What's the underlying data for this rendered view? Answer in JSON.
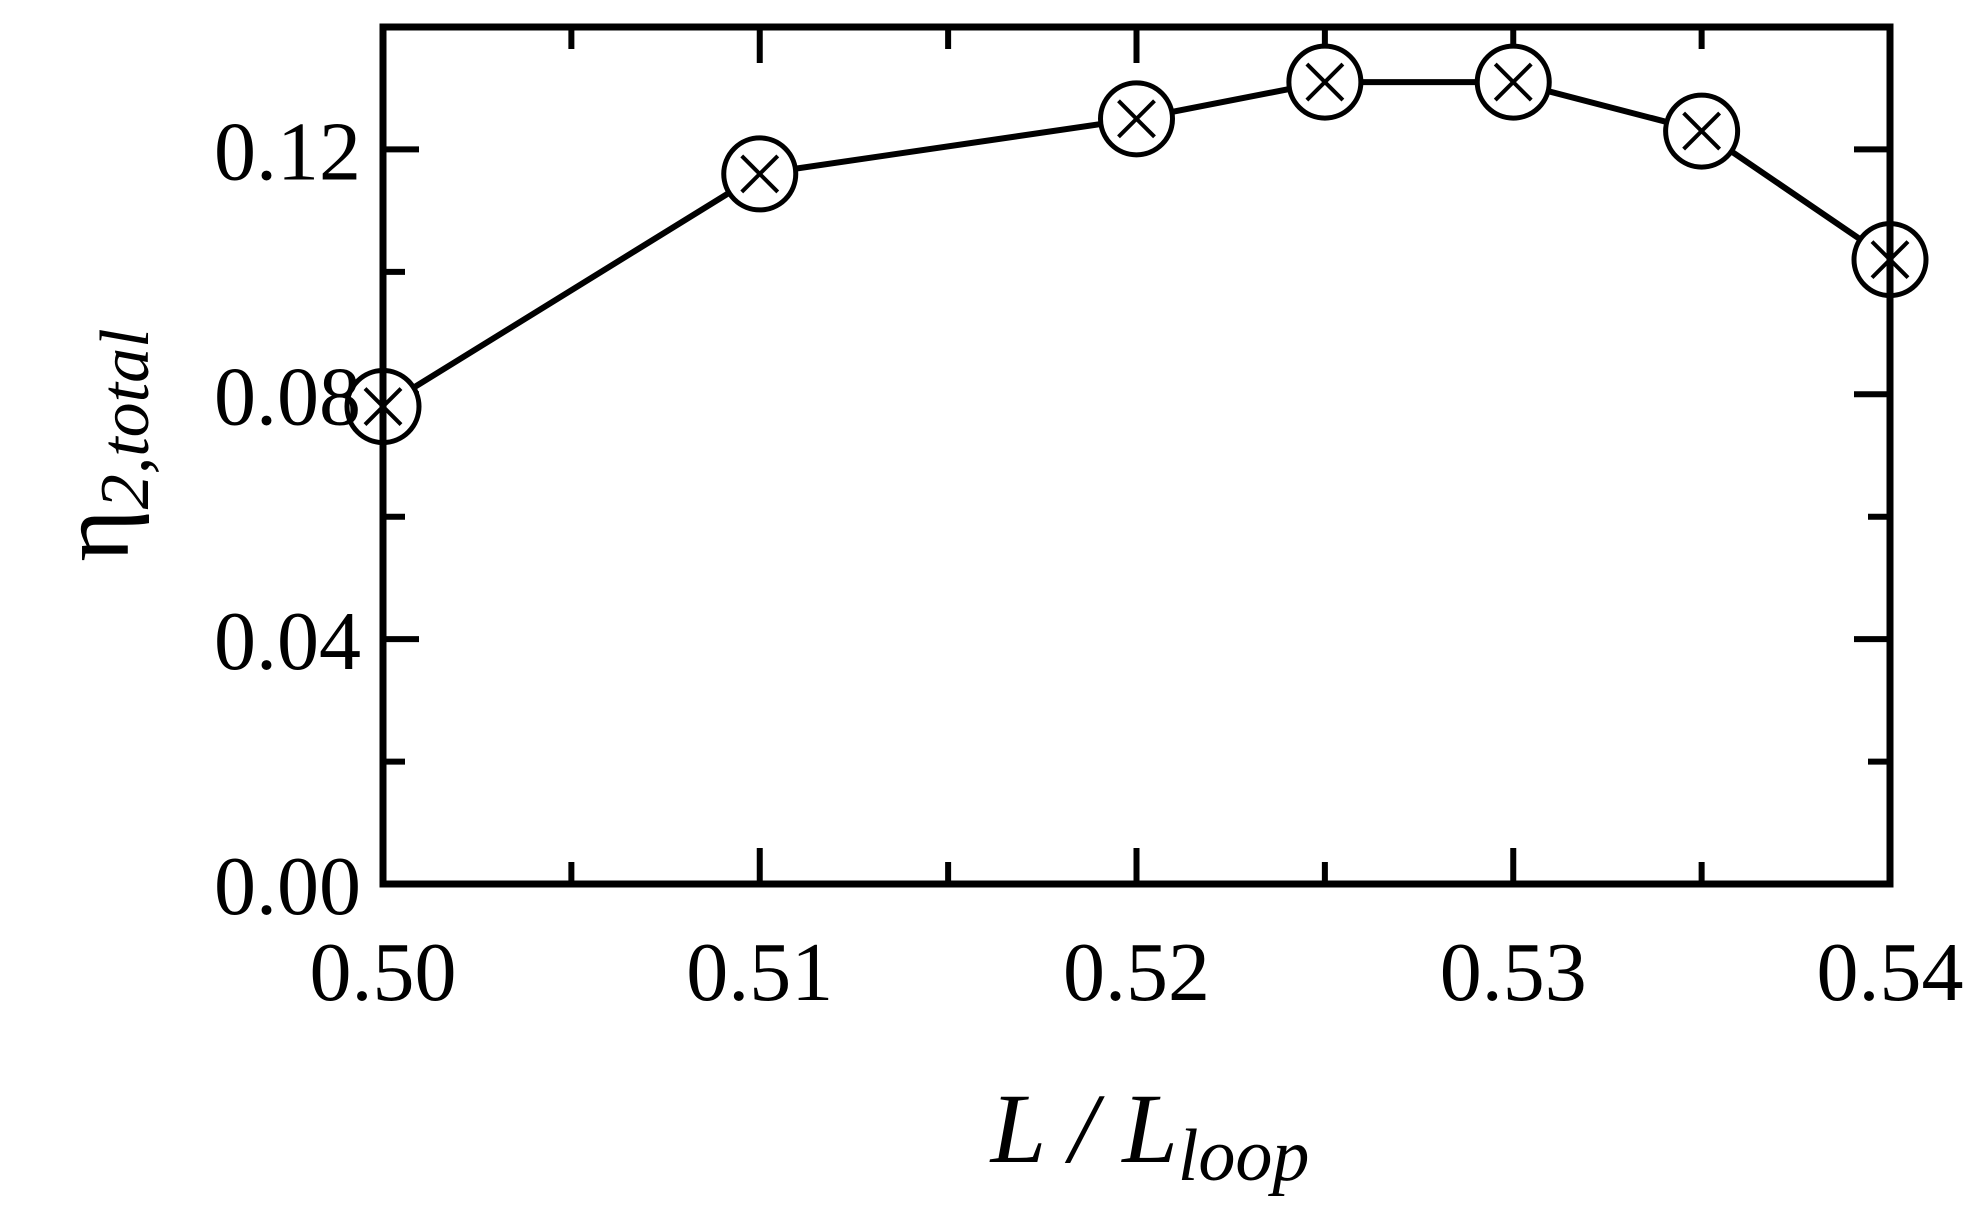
{
  "chart_data": {
    "type": "line",
    "title": "",
    "xlabel": {
      "main": "L / L",
      "sub": "loop"
    },
    "ylabel": {
      "main": "η",
      "sub": "2,total"
    },
    "xlim": [
      0.5,
      0.54
    ],
    "ylim": [
      0.0,
      0.14
    ],
    "x_ticks": [
      0.5,
      0.51,
      0.52,
      0.53,
      0.54
    ],
    "x_tick_labels": [
      "0.50",
      "0.51",
      "0.52",
      "0.53",
      "0.54"
    ],
    "x_minor_ticks": [
      0.505,
      0.515,
      0.525,
      0.535
    ],
    "y_ticks": [
      0.0,
      0.04,
      0.08,
      0.12
    ],
    "y_tick_labels": [
      "0.00",
      "0.04",
      "0.08",
      "0.12"
    ],
    "y_minor_ticks": [
      0.02,
      0.06,
      0.1,
      0.14
    ],
    "grid": false,
    "series": [
      {
        "marker": "circle-x",
        "color": "#000000",
        "x": [
          0.5,
          0.51,
          0.52,
          0.525,
          0.53,
          0.535,
          0.54
        ],
        "y": [
          0.078,
          0.116,
          0.125,
          0.131,
          0.131,
          0.123,
          0.102
        ]
      }
    ]
  }
}
